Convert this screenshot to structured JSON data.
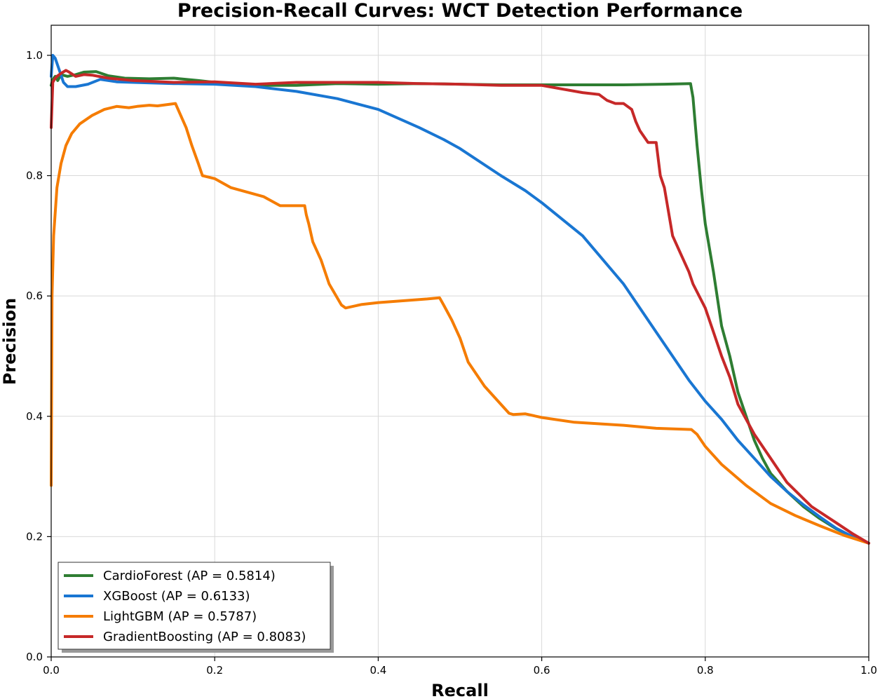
{
  "chart_data": {
    "type": "line",
    "title": "Precision-Recall Curves: WCT Detection Performance",
    "xlabel": "Recall",
    "ylabel": "Precision",
    "xlim": [
      0.0,
      1.0
    ],
    "ylim": [
      0.0,
      1.05
    ],
    "xticks": [
      "0.0",
      "0.2",
      "0.4",
      "0.6",
      "0.8",
      "1.0"
    ],
    "yticks": [
      "0.0",
      "0.2",
      "0.4",
      "0.6",
      "0.8",
      "1.0"
    ],
    "grid": true,
    "legend_position": "lower-left",
    "series": [
      {
        "name": "CardioForest",
        "label": "CardioForest (AP = 0.5814)",
        "color": "#2e7d32",
        "x": [
          0.0,
          0.002,
          0.005,
          0.008,
          0.012,
          0.02,
          0.03,
          0.04,
          0.055,
          0.07,
          0.09,
          0.12,
          0.15,
          0.18,
          0.2,
          0.25,
          0.3,
          0.35,
          0.4,
          0.45,
          0.5,
          0.55,
          0.6,
          0.65,
          0.7,
          0.75,
          0.782,
          0.785,
          0.79,
          0.795,
          0.8,
          0.81,
          0.82,
          0.83,
          0.84,
          0.85,
          0.86,
          0.87,
          0.88,
          0.9,
          0.92,
          0.94,
          0.96,
          0.98,
          1.0
        ],
        "y": [
          0.95,
          0.96,
          0.965,
          0.958,
          0.968,
          0.965,
          0.968,
          0.972,
          0.973,
          0.966,
          0.962,
          0.961,
          0.962,
          0.958,
          0.955,
          0.95,
          0.95,
          0.953,
          0.952,
          0.953,
          0.952,
          0.951,
          0.951,
          0.951,
          0.951,
          0.952,
          0.953,
          0.93,
          0.85,
          0.78,
          0.72,
          0.64,
          0.55,
          0.5,
          0.44,
          0.4,
          0.36,
          0.33,
          0.305,
          0.275,
          0.25,
          0.23,
          0.213,
          0.2,
          0.189
        ]
      },
      {
        "name": "XGBoost",
        "label": "XGBoost (AP = 0.6133)",
        "color": "#1976d2",
        "x": [
          0.0,
          0.002,
          0.005,
          0.01,
          0.015,
          0.02,
          0.03,
          0.045,
          0.06,
          0.08,
          0.1,
          0.15,
          0.2,
          0.25,
          0.3,
          0.35,
          0.4,
          0.45,
          0.48,
          0.5,
          0.55,
          0.58,
          0.6,
          0.65,
          0.7,
          0.74,
          0.76,
          0.78,
          0.8,
          0.82,
          0.84,
          0.86,
          0.88,
          0.9,
          0.92,
          0.94,
          0.96,
          0.98,
          1.0
        ],
        "y": [
          0.965,
          1.0,
          0.995,
          0.975,
          0.955,
          0.948,
          0.948,
          0.952,
          0.96,
          0.956,
          0.955,
          0.953,
          0.952,
          0.948,
          0.94,
          0.928,
          0.91,
          0.88,
          0.86,
          0.845,
          0.8,
          0.775,
          0.755,
          0.7,
          0.62,
          0.54,
          0.5,
          0.46,
          0.425,
          0.395,
          0.36,
          0.33,
          0.3,
          0.275,
          0.253,
          0.233,
          0.214,
          0.2,
          0.189
        ]
      },
      {
        "name": "LightGBM",
        "label": "LightGBM (AP = 0.5787)",
        "color": "#f57c00",
        "x": [
          0.0,
          0.001,
          0.003,
          0.007,
          0.012,
          0.018,
          0.025,
          0.035,
          0.05,
          0.065,
          0.08,
          0.095,
          0.105,
          0.12,
          0.13,
          0.152,
          0.165,
          0.172,
          0.18,
          0.185,
          0.2,
          0.22,
          0.26,
          0.28,
          0.31,
          0.312,
          0.315,
          0.32,
          0.33,
          0.34,
          0.355,
          0.36,
          0.38,
          0.4,
          0.43,
          0.46,
          0.475,
          0.48,
          0.49,
          0.5,
          0.51,
          0.53,
          0.55,
          0.56,
          0.565,
          0.58,
          0.6,
          0.64,
          0.7,
          0.74,
          0.783,
          0.79,
          0.8,
          0.82,
          0.85,
          0.88,
          0.91,
          0.94,
          0.97,
          1.0
        ],
        "y": [
          0.285,
          0.6,
          0.7,
          0.78,
          0.82,
          0.85,
          0.87,
          0.886,
          0.9,
          0.91,
          0.915,
          0.913,
          0.915,
          0.917,
          0.916,
          0.92,
          0.88,
          0.85,
          0.82,
          0.8,
          0.795,
          0.78,
          0.765,
          0.75,
          0.75,
          0.735,
          0.72,
          0.69,
          0.66,
          0.62,
          0.585,
          0.58,
          0.586,
          0.589,
          0.592,
          0.595,
          0.597,
          0.585,
          0.56,
          0.53,
          0.49,
          0.45,
          0.42,
          0.405,
          0.403,
          0.404,
          0.398,
          0.39,
          0.385,
          0.38,
          0.378,
          0.37,
          0.35,
          0.32,
          0.285,
          0.255,
          0.235,
          0.218,
          0.202,
          0.189
        ]
      },
      {
        "name": "GradientBoosting",
        "label": "GradientBoosting (AP = 0.8083)",
        "color": "#c62828",
        "x": [
          0.0,
          0.002,
          0.004,
          0.007,
          0.012,
          0.018,
          0.022,
          0.03,
          0.04,
          0.05,
          0.07,
          0.1,
          0.15,
          0.2,
          0.25,
          0.3,
          0.35,
          0.4,
          0.45,
          0.5,
          0.55,
          0.6,
          0.65,
          0.67,
          0.68,
          0.69,
          0.7,
          0.71,
          0.715,
          0.72,
          0.73,
          0.74,
          0.745,
          0.75,
          0.76,
          0.77,
          0.78,
          0.785,
          0.8,
          0.81,
          0.82,
          0.83,
          0.84,
          0.86,
          0.88,
          0.9,
          0.93,
          0.96,
          0.98,
          1.0
        ],
        "y": [
          0.88,
          0.955,
          0.96,
          0.965,
          0.97,
          0.975,
          0.972,
          0.965,
          0.968,
          0.967,
          0.962,
          0.958,
          0.955,
          0.956,
          0.952,
          0.955,
          0.955,
          0.955,
          0.953,
          0.952,
          0.95,
          0.95,
          0.938,
          0.935,
          0.925,
          0.92,
          0.92,
          0.91,
          0.89,
          0.875,
          0.855,
          0.855,
          0.8,
          0.78,
          0.7,
          0.67,
          0.64,
          0.62,
          0.58,
          0.54,
          0.5,
          0.465,
          0.42,
          0.37,
          0.33,
          0.29,
          0.25,
          0.223,
          0.205,
          0.189
        ]
      }
    ]
  }
}
